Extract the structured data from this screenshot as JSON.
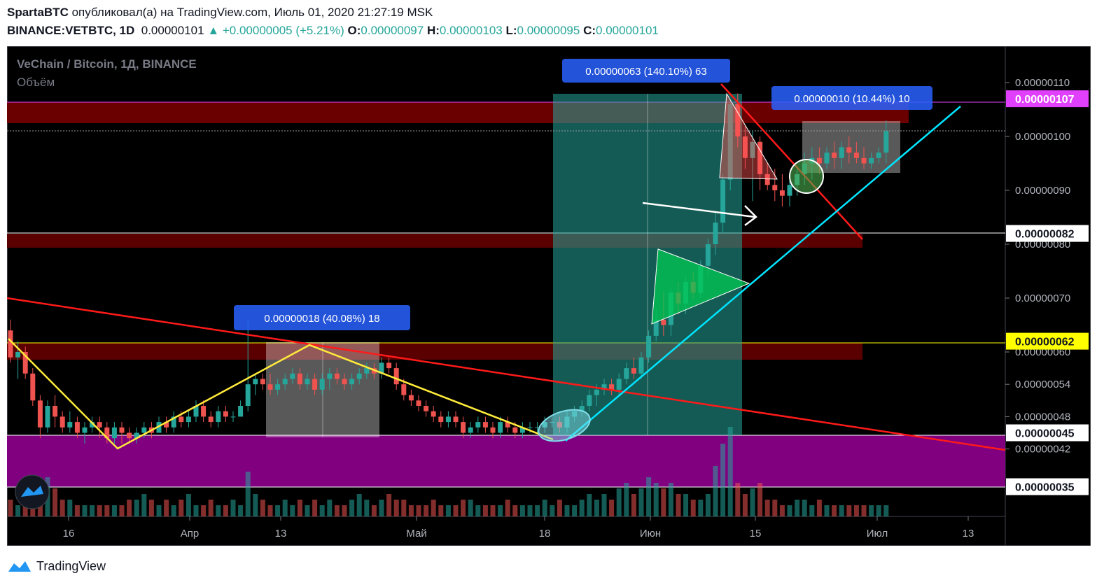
{
  "header": {
    "author": "SpartaBTC",
    "published_text": "опубликовал(а) на TradingView.com, Июль 01, 2020 21:27:19 MSK",
    "symbol": "BINANCE:VETBTC, 1D",
    "last": "0.00000101",
    "change": "▲ +0.00000005 (+5.21%)",
    "o_label": "O:",
    "o": "0.00000097",
    "h_label": "H:",
    "h": "0.00000103",
    "l_label": "L:",
    "l": "0.00000095",
    "c_label": "C:",
    "c": "0.00000101"
  },
  "chart_data": {
    "type": "candlestick",
    "title": "VeChain / Bitcoin, 1Д, BINANCE",
    "subtitle": "Объём",
    "ylim": [
      3.3e-07,
      1.18e-06
    ],
    "price_ticks": [
      "0.00000110",
      "0.00000100",
      "0.00000090",
      "0.00000080",
      "0.00000070",
      "0.00000060",
      "0.00000054",
      "0.00000048",
      "0.00000042"
    ],
    "price_tick_values": [
      1.1e-06,
      1e-06,
      9e-07,
      8e-07,
      7e-07,
      6e-07,
      5.4e-07,
      4.8e-07,
      4.2e-07
    ],
    "time_ticks": [
      "16",
      "Апр",
      "13",
      "Май",
      "18",
      "Июн",
      "15",
      "Июл",
      "13"
    ],
    "price_labels": [
      {
        "text": "0.00000107",
        "value": 1.07e-06,
        "bg": "#e040fb",
        "fg": "#ffffff"
      },
      {
        "text": "0.00000082",
        "value": 8.2e-07,
        "bg": "#ffffff",
        "fg": "#131722"
      },
      {
        "text": "0.00000062",
        "value": 6.2e-07,
        "bg": "#ffff00",
        "fg": "#131722"
      },
      {
        "text": "0.00000045",
        "value": 4.5e-07,
        "bg": "#ffffff",
        "fg": "#131722"
      },
      {
        "text": "0.00000035",
        "value": 3.5e-07,
        "bg": "#ffffff",
        "fg": "#131722"
      }
    ],
    "annotations": [
      "0.00000063 (140.10%) 63",
      "0.00000010 (10.44%) 10",
      "0.00000018 (40.08%) 18"
    ],
    "candles": [
      [
        64,
        66,
        58,
        59
      ],
      [
        59,
        62,
        55,
        60
      ],
      [
        60,
        61,
        55,
        56
      ],
      [
        56,
        57,
        50,
        51
      ],
      [
        51,
        52,
        44,
        46
      ],
      [
        46,
        51,
        45,
        50
      ],
      [
        50,
        52,
        46,
        48
      ],
      [
        48,
        49,
        45,
        46
      ],
      [
        46,
        49,
        45,
        47
      ],
      [
        47,
        48,
        44,
        45
      ],
      [
        45,
        47,
        43,
        46
      ],
      [
        46,
        48,
        45,
        47
      ],
      [
        47,
        48,
        44,
        46
      ],
      [
        46,
        47,
        43,
        44
      ],
      [
        44,
        47,
        43,
        46
      ],
      [
        46,
        47,
        43,
        45
      ],
      [
        45,
        46,
        43,
        44
      ],
      [
        44,
        46,
        43,
        45
      ],
      [
        45,
        47,
        44,
        46
      ],
      [
        46,
        47,
        44,
        45
      ],
      [
        45,
        48,
        45,
        47
      ],
      [
        47,
        48,
        45,
        46
      ],
      [
        46,
        49,
        45,
        48
      ],
      [
        48,
        49,
        46,
        47
      ],
      [
        47,
        49,
        46,
        48
      ],
      [
        48,
        51,
        47,
        50
      ],
      [
        50,
        51,
        47,
        48
      ],
      [
        48,
        49,
        46,
        47
      ],
      [
        47,
        50,
        46,
        49
      ],
      [
        49,
        50,
        47,
        48
      ],
      [
        48,
        49,
        47,
        48
      ],
      [
        48,
        51,
        48,
        50
      ],
      [
        50,
        66,
        49,
        54
      ],
      [
        54,
        56,
        52,
        55
      ],
      [
        55,
        56,
        53,
        54
      ],
      [
        54,
        56,
        52,
        53
      ],
      [
        53,
        55,
        52,
        54
      ],
      [
        54,
        56,
        53,
        55
      ],
      [
        55,
        57,
        54,
        56
      ],
      [
        56,
        57,
        53,
        54
      ],
      [
        54,
        56,
        53,
        55
      ],
      [
        55,
        56,
        52,
        53
      ],
      [
        53,
        56,
        52,
        55
      ],
      [
        55,
        57,
        53,
        56
      ],
      [
        56,
        57,
        54,
        55
      ],
      [
        55,
        56,
        53,
        54
      ],
      [
        54,
        56,
        53,
        55
      ],
      [
        55,
        57,
        54,
        56
      ],
      [
        56,
        58,
        55,
        57
      ],
      [
        57,
        58,
        55,
        56
      ],
      [
        56,
        59,
        55,
        58
      ],
      [
        58,
        59,
        56,
        57
      ],
      [
        57,
        58,
        53,
        54
      ],
      [
        54,
        55,
        51,
        52
      ],
      [
        52,
        53,
        50,
        51
      ],
      [
        51,
        52,
        49,
        50
      ],
      [
        50,
        51,
        48,
        49
      ],
      [
        49,
        50,
        47,
        48
      ],
      [
        48,
        49,
        46,
        47
      ],
      [
        47,
        49,
        46,
        48
      ],
      [
        48,
        49,
        46,
        47
      ],
      [
        47,
        48,
        44,
        45
      ],
      [
        45,
        47,
        44,
        46
      ],
      [
        46,
        48,
        45,
        47
      ],
      [
        47,
        48,
        45,
        46
      ],
      [
        46,
        47,
        44,
        45
      ],
      [
        45,
        48,
        44,
        47
      ],
      [
        47,
        48,
        45,
        46
      ],
      [
        46,
        47,
        44,
        45
      ],
      [
        45,
        47,
        44,
        46
      ],
      [
        46,
        47,
        45,
        46
      ],
      [
        46,
        47,
        45,
        46
      ],
      [
        46,
        48,
        45,
        47
      ],
      [
        47,
        48,
        46,
        47
      ],
      [
        47,
        48,
        45,
        46
      ],
      [
        46,
        49,
        45,
        48
      ],
      [
        48,
        50,
        47,
        49
      ],
      [
        49,
        51,
        48,
        50
      ],
      [
        50,
        53,
        49,
        52
      ],
      [
        52,
        54,
        50,
        53
      ],
      [
        53,
        55,
        52,
        54
      ],
      [
        54,
        55,
        52,
        53
      ],
      [
        53,
        56,
        52,
        55
      ],
      [
        55,
        58,
        54,
        57
      ],
      [
        57,
        59,
        55,
        56
      ],
      [
        56,
        60,
        55,
        59
      ],
      [
        59,
        64,
        58,
        63
      ],
      [
        63,
        68,
        62,
        66
      ],
      [
        66,
        71,
        63,
        65
      ],
      [
        65,
        72,
        63,
        71
      ],
      [
        71,
        73,
        67,
        69
      ],
      [
        69,
        74,
        67,
        73
      ],
      [
        73,
        75,
        70,
        71
      ],
      [
        71,
        77,
        70,
        76
      ],
      [
        76,
        81,
        74,
        80
      ],
      [
        80,
        86,
        78,
        84
      ],
      [
        84,
        93,
        82,
        92
      ],
      [
        92,
        107,
        90,
        106
      ],
      [
        106,
        108,
        98,
        100
      ],
      [
        100,
        102,
        94,
        96
      ],
      [
        96,
        101,
        88,
        99
      ],
      [
        99,
        100,
        90,
        93
      ],
      [
        93,
        95,
        90,
        91
      ],
      [
        91,
        94,
        88,
        90
      ],
      [
        90,
        93,
        87,
        89
      ],
      [
        89,
        92,
        87,
        91
      ],
      [
        91,
        94,
        89,
        93
      ],
      [
        93,
        97,
        91,
        95
      ],
      [
        95,
        98,
        92,
        96
      ],
      [
        96,
        98,
        93,
        95
      ],
      [
        95,
        98,
        94,
        97
      ],
      [
        97,
        99,
        94,
        96
      ],
      [
        96,
        99,
        94,
        98
      ],
      [
        98,
        100,
        95,
        97
      ],
      [
        97,
        99,
        95,
        96
      ],
      [
        96,
        98,
        94,
        95
      ],
      [
        95,
        97,
        94,
        96
      ],
      [
        96,
        98,
        95,
        97
      ],
      [
        97,
        103,
        95,
        101
      ]
    ],
    "volumes": [
      3,
      2,
      3,
      4,
      2,
      7,
      5,
      3,
      3,
      2,
      2,
      2,
      2,
      2,
      2,
      2,
      3,
      3,
      4,
      3,
      2,
      3,
      2,
      3,
      4,
      2,
      2,
      3,
      2,
      2,
      3,
      2,
      8,
      4,
      3,
      2,
      2,
      3,
      2,
      3,
      2,
      3,
      2,
      3,
      2,
      2,
      3,
      4,
      3,
      2,
      3,
      4,
      3,
      3,
      2,
      2,
      2,
      3,
      2,
      2,
      2,
      3,
      3,
      2,
      2,
      2,
      2,
      3,
      2,
      2,
      2,
      2,
      3,
      2,
      3,
      2,
      2,
      3,
      4,
      3,
      4,
      3,
      5,
      6,
      4,
      5,
      7,
      6,
      5,
      6,
      4,
      4,
      3,
      3,
      4,
      9,
      13,
      16,
      6,
      4,
      5,
      6,
      3,
      3,
      2,
      2,
      3,
      3,
      2,
      3,
      2,
      2,
      2,
      2,
      2,
      2,
      2,
      2,
      2
    ]
  },
  "footer": {
    "brand": "TradingView"
  }
}
